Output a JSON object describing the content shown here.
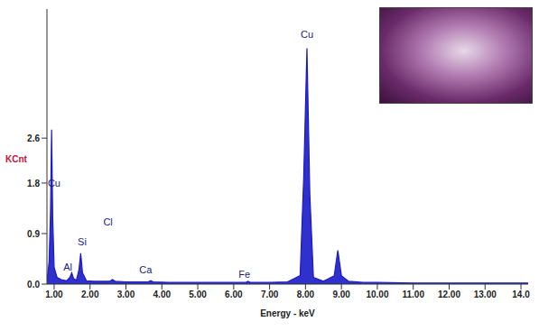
{
  "chart_data": {
    "type": "area",
    "y_label": "KCnt",
    "x_label": "Energy - keV",
    "color": "#1a1ac8",
    "xlim": [
      0.8,
      14.2
    ],
    "ylim": [
      0,
      4.9
    ],
    "xticks": [
      {
        "value": 1,
        "label": "1.00"
      },
      {
        "value": 2,
        "label": "2.00"
      },
      {
        "value": 3,
        "label": "3.00"
      },
      {
        "value": 4,
        "label": "4.00"
      },
      {
        "value": 5,
        "label": "5.00"
      },
      {
        "value": 6,
        "label": "6.00"
      },
      {
        "value": 7,
        "label": "7.00"
      },
      {
        "value": 8,
        "label": "8.00"
      },
      {
        "value": 9,
        "label": "9.00"
      },
      {
        "value": 10,
        "label": "10.00"
      },
      {
        "value": 11,
        "label": "11.00"
      },
      {
        "value": 12,
        "label": "12.00"
      },
      {
        "value": 13,
        "label": "13.00"
      },
      {
        "value": 14,
        "label": "14.0"
      }
    ],
    "yticks": [
      {
        "value": 0,
        "label": "0.0"
      },
      0.9,
      1.8,
      2.6
    ],
    "grid": false,
    "x": [
      0.8,
      0.86,
      0.9,
      0.93,
      0.96,
      1.0,
      1.08,
      1.2,
      1.35,
      1.44,
      1.49,
      1.54,
      1.62,
      1.69,
      1.74,
      1.79,
      1.9,
      2.1,
      2.3,
      2.55,
      2.62,
      2.7,
      3.0,
      3.3,
      3.62,
      3.69,
      3.76,
      4.2,
      4.6,
      5.0,
      5.5,
      6.0,
      6.34,
      6.4,
      6.46,
      7.0,
      7.5,
      7.85,
      7.95,
      8.04,
      8.12,
      8.22,
      8.5,
      8.8,
      8.9,
      9.0,
      9.2,
      9.6,
      10.0,
      11.0,
      12.0,
      13.0,
      14.0,
      14.2
    ],
    "values": [
      0.05,
      0.4,
      1.3,
      2.75,
      1.2,
      0.3,
      0.12,
      0.08,
      0.06,
      0.12,
      0.2,
      0.1,
      0.07,
      0.25,
      0.55,
      0.2,
      0.06,
      0.05,
      0.05,
      0.05,
      0.08,
      0.05,
      0.04,
      0.04,
      0.04,
      0.06,
      0.04,
      0.03,
      0.03,
      0.03,
      0.03,
      0.03,
      0.03,
      0.05,
      0.03,
      0.03,
      0.04,
      0.15,
      1.9,
      4.2,
      1.6,
      0.12,
      0.05,
      0.15,
      0.6,
      0.15,
      0.05,
      0.03,
      0.03,
      0.02,
      0.02,
      0.02,
      0.02,
      0.02
    ],
    "annotations": [
      {
        "text": "Cu",
        "x": 1.0,
        "y": 1.8
      },
      {
        "text": "Al",
        "x": 1.38,
        "y": 0.3
      },
      {
        "text": "Si",
        "x": 1.78,
        "y": 0.75
      },
      {
        "text": "Cl",
        "x": 2.5,
        "y": 1.1
      },
      {
        "text": "Ca",
        "x": 3.55,
        "y": 0.25
      },
      {
        "text": "Fe",
        "x": 6.3,
        "y": 0.18
      },
      {
        "text": "Cu",
        "x": 8.04,
        "y": 4.45
      }
    ]
  }
}
